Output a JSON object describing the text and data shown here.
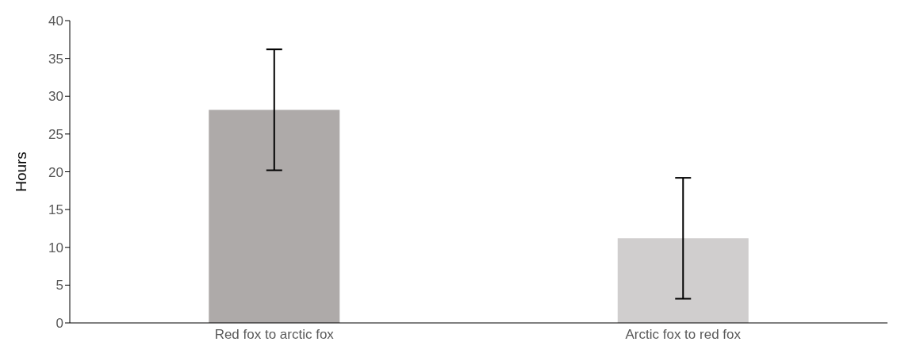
{
  "chart_data": {
    "type": "bar",
    "ylabel": "Hours",
    "categories": [
      "Red fox to arctic fox",
      "Arctic fox to red fox"
    ],
    "values": [
      28.2,
      11.2
    ],
    "colors": [
      "#aeaaa9",
      "#d0cece"
    ],
    "errors": [
      8,
      8
    ],
    "ylim": [
      0,
      40
    ],
    "yticks": [
      0,
      5,
      10,
      15,
      20,
      25,
      30,
      35,
      40
    ],
    "grid": false,
    "legend": false
  }
}
